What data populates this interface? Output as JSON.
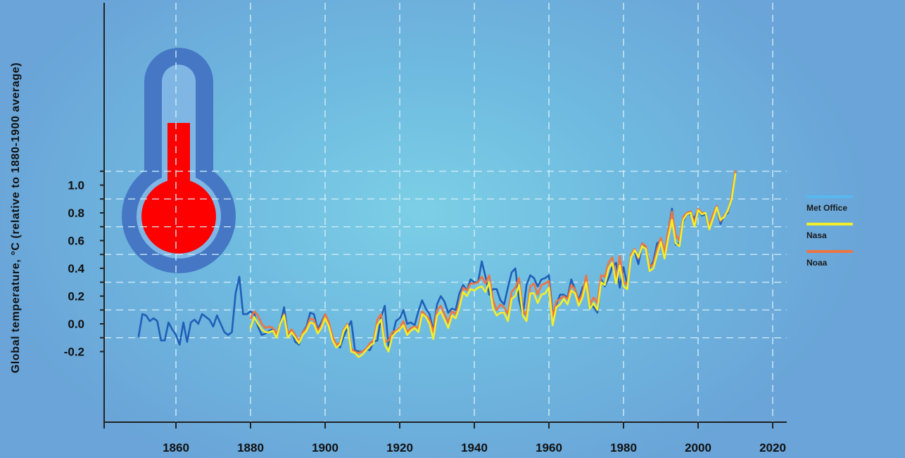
{
  "chart_data": {
    "type": "line",
    "title": "",
    "xlabel": "",
    "ylabel": "Global temperature, °C (relative to 1880-1900 average)",
    "xlim": [
      1832,
      2023
    ],
    "ylim": [
      -0.3,
      1.12
    ],
    "x_ticks": [
      1860,
      1880,
      1900,
      1920,
      1940,
      1960,
      1980,
      2000,
      2020
    ],
    "x_tick_labels": [
      "1860",
      "1880",
      "1900",
      "1920",
      "1940",
      "1960",
      "1980",
      "2000",
      "2020"
    ],
    "y_ticks": [
      -0.2,
      0.0,
      0.2,
      0.4,
      0.6,
      0.8,
      1.0
    ],
    "y_tick_labels": [
      "-0.2",
      "0.0",
      "0.2",
      "0.4",
      "0.6",
      "0.8",
      "1.0"
    ],
    "grid": true,
    "legend_position": "right",
    "series": [
      {
        "name": "Met Office",
        "color": "#1f5fb8",
        "start_year": 1850,
        "values": [
          -0.09,
          0.07,
          0.06,
          0.02,
          0.04,
          0.02,
          -0.12,
          -0.12,
          0.01,
          -0.04,
          -0.08,
          -0.15,
          0.01,
          -0.13,
          0.01,
          0.03,
          0.0,
          0.07,
          0.05,
          0.03,
          -0.02,
          0.06,
          0.0,
          -0.06,
          -0.08,
          -0.06,
          0.22,
          0.34,
          0.07,
          0.07,
          0.09,
          0.07,
          -0.02,
          -0.08,
          -0.07,
          -0.05,
          -0.04,
          -0.1,
          0.0,
          0.12,
          -0.08,
          -0.05,
          -0.13,
          -0.15,
          -0.06,
          -0.02,
          0.08,
          0.07,
          -0.04,
          0.01,
          0.07,
          0.01,
          -0.1,
          -0.15,
          -0.17,
          -0.09,
          -0.03,
          0.02,
          -0.19,
          -0.2,
          -0.2,
          -0.18,
          -0.19,
          -0.13,
          -0.12,
          0.05,
          0.13,
          -0.16,
          -0.09,
          0.02,
          0.04,
          0.1,
          0.0,
          0.01,
          -0.01,
          0.09,
          0.17,
          0.11,
          0.07,
          -0.05,
          0.14,
          0.2,
          0.16,
          0.08,
          0.11,
          0.1,
          0.22,
          0.28,
          0.24,
          0.32,
          0.3,
          0.3,
          0.45,
          0.34,
          0.21,
          0.25,
          0.25,
          0.17,
          0.14,
          0.26,
          0.37,
          0.4,
          0.17,
          0.06,
          0.28,
          0.35,
          0.33,
          0.27,
          0.32,
          0.33,
          0.35,
          0.07,
          0.14,
          0.21,
          0.21,
          0.19,
          0.32,
          0.25,
          0.17,
          0.26,
          0.3,
          0.14,
          0.12,
          0.08,
          0.32,
          0.27,
          0.33,
          0.41,
          0.44,
          0.26,
          0.41,
          0.28,
          0.49,
          0.52,
          0.43,
          0.58,
          0.55,
          0.4,
          0.45,
          0.58,
          0.6,
          0.51,
          0.67,
          0.83,
          0.57,
          0.58,
          0.74,
          0.79,
          0.79,
          0.76,
          0.82,
          0.78,
          0.79,
          0.68,
          0.78,
          0.85,
          0.72,
          0.78,
          0.8,
          0.92,
          1.09
        ]
      },
      {
        "name": "Nasa",
        "color": "#f4ee2a",
        "start_year": 1880,
        "values": [
          -0.03,
          0.05,
          0.0,
          -0.04,
          -0.06,
          -0.06,
          -0.05,
          -0.1,
          0.0,
          0.06,
          -0.1,
          -0.06,
          -0.1,
          -0.14,
          -0.08,
          -0.05,
          0.01,
          0.0,
          -0.07,
          -0.03,
          0.04,
          -0.02,
          -0.12,
          -0.17,
          -0.15,
          -0.05,
          -0.01,
          -0.2,
          -0.21,
          -0.24,
          -0.22,
          -0.19,
          -0.16,
          -0.14,
          -0.01,
          0.03,
          -0.15,
          -0.2,
          -0.09,
          -0.06,
          -0.04,
          -0.01,
          -0.08,
          -0.05,
          -0.03,
          -0.06,
          0.07,
          0.05,
          0.0,
          -0.11,
          0.06,
          0.09,
          0.03,
          -0.03,
          0.06,
          0.04,
          0.12,
          0.23,
          0.2,
          0.25,
          0.24,
          0.26,
          0.27,
          0.23,
          0.3,
          0.11,
          0.06,
          0.08,
          0.08,
          0.02,
          0.18,
          0.2,
          0.28,
          0.06,
          0.02,
          0.22,
          0.22,
          0.15,
          0.21,
          0.22,
          0.26,
          -0.01,
          0.12,
          0.14,
          0.18,
          0.14,
          0.24,
          0.22,
          0.13,
          0.19,
          0.3,
          0.11,
          0.15,
          0.1,
          0.3,
          0.28,
          0.4,
          0.44,
          0.29,
          0.42,
          0.27,
          0.25,
          0.48,
          0.53,
          0.48,
          0.56,
          0.54,
          0.38,
          0.4,
          0.5,
          0.59,
          0.47,
          0.62,
          0.75,
          0.58,
          0.56,
          0.75,
          0.79,
          0.8,
          0.7,
          0.82,
          0.79,
          0.8,
          0.68,
          0.76,
          0.84,
          0.75,
          0.77,
          0.82,
          0.9,
          1.08
        ]
      },
      {
        "name": "Noaa",
        "color": "#ee7440",
        "start_year": 1880,
        "values": [
          0.04,
          0.09,
          0.06,
          0.0,
          -0.03,
          -0.02,
          -0.03,
          -0.07,
          0.0,
          0.07,
          -0.07,
          -0.04,
          -0.08,
          -0.13,
          -0.06,
          -0.03,
          0.04,
          0.03,
          -0.05,
          -0.01,
          0.07,
          0.01,
          -0.09,
          -0.15,
          -0.14,
          -0.04,
          0.0,
          -0.18,
          -0.2,
          -0.21,
          -0.2,
          -0.18,
          -0.14,
          -0.12,
          0.03,
          0.07,
          -0.13,
          -0.12,
          -0.06,
          -0.05,
          -0.03,
          0.02,
          -0.06,
          -0.03,
          -0.02,
          -0.03,
          0.09,
          0.06,
          0.03,
          -0.06,
          0.1,
          0.13,
          0.07,
          0.01,
          0.09,
          0.07,
          0.14,
          0.26,
          0.24,
          0.29,
          0.29,
          0.3,
          0.34,
          0.29,
          0.35,
          0.17,
          0.1,
          0.14,
          0.12,
          0.07,
          0.23,
          0.26,
          0.33,
          0.1,
          0.06,
          0.27,
          0.29,
          0.21,
          0.28,
          0.29,
          0.31,
          0.05,
          0.16,
          0.18,
          0.2,
          0.18,
          0.28,
          0.25,
          0.16,
          0.22,
          0.35,
          0.14,
          0.19,
          0.15,
          0.35,
          0.34,
          0.44,
          0.48,
          0.31,
          0.49,
          0.3,
          0.28,
          0.5,
          0.54,
          0.47,
          0.58,
          0.56,
          0.41,
          0.43,
          0.54,
          0.62,
          0.52,
          0.67,
          0.81,
          0.64,
          0.6,
          0.77,
          0.8,
          0.81,
          0.73,
          0.83,
          0.8,
          0.8,
          0.7,
          0.79,
          0.85,
          0.74,
          0.78,
          0.81,
          0.92,
          1.1
        ]
      }
    ]
  },
  "colors": {
    "thermometer_tube": "#4577c4",
    "thermometer_inner": "#7fb6e4",
    "thermometer_mercury": "#ff0000",
    "grid": "#d6eef8",
    "axis": "#222222"
  }
}
